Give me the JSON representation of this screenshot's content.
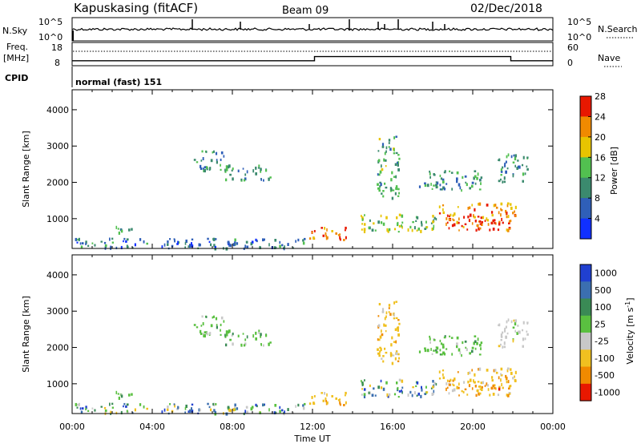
{
  "header": {
    "station": "Kapuskasing (fitACF)",
    "beam": "Beam 09",
    "date": "02/Dec/2018"
  },
  "top_panels": {
    "nsky_label": "N.Sky",
    "nsky_ticks": [
      "10^5",
      "10^0"
    ],
    "nsearch_label": "N.Search",
    "nsearch_ticks": [
      "10^5",
      "10^0"
    ],
    "freq_label_1": "Freq.",
    "freq_label_2": "[MHz]",
    "freq_ticks": [
      "18",
      "8"
    ],
    "nave_label": "Nave",
    "nave_ticks": [
      "60",
      "0"
    ],
    "cpid_label": "CPID",
    "cpid_text": "normal (fast) 151"
  },
  "axes": {
    "ylabel": "Slant Range [km]",
    "yticks": [
      "1000",
      "2000",
      "3000",
      "4000"
    ],
    "yticks_values": [
      1000,
      2000,
      3000,
      4000
    ],
    "ylim": [
      180,
      4550
    ],
    "xlabel": "Time UT",
    "xticks": [
      "00:00",
      "04:00",
      "08:00",
      "12:00",
      "16:00",
      "20:00",
      "00:00"
    ],
    "xlim_hours": [
      0,
      24
    ]
  },
  "colorbars": {
    "power": {
      "label": "Power [dB]",
      "ticks": [
        "4",
        "8",
        "12",
        "16",
        "20",
        "24",
        "28"
      ],
      "colors": [
        "#1030ff",
        "#2f5fb8",
        "#3b8a6e",
        "#52c050",
        "#e8c400",
        "#f08a00",
        "#e81800"
      ]
    },
    "velocity": {
      "label_main": "Velocity [m s",
      "label_sup": "-1",
      "label_end": "]",
      "ticks": [
        "1000",
        "500",
        "100",
        "25",
        "-25",
        "-100",
        "-500",
        "-1000"
      ],
      "colors": [
        "#2040d0",
        "#3b6fb0",
        "#3a8a55",
        "#5ac040",
        "#c8c8c8",
        "#f0c020",
        "#f08a00",
        "#e81800"
      ]
    }
  },
  "chart_data": {
    "type": "heatmap",
    "title": "Kapuskasing (fitACF)",
    "subtitle": "Beam 09",
    "xlabel": "Time UT",
    "ylabel": "Slant Range [km]",
    "x_ticks": [
      "00:00",
      "04:00",
      "08:00",
      "12:00",
      "16:00",
      "20:00",
      "00:00"
    ],
    "y_ticks": [
      1000,
      2000,
      3000,
      4000
    ],
    "ylim": [
      180,
      4550
    ],
    "frequency_MHz": [
      {
        "start_hour": 0,
        "end_hour": 12.1,
        "value": 10
      },
      {
        "start_hour": 12.1,
        "end_hour": 21.9,
        "value": 12
      },
      {
        "start_hour": 21.9,
        "end_hour": 24,
        "value": 10
      }
    ],
    "echo_regions": [
      {
        "t0": 0.0,
        "t1": 12.0,
        "r0": 200,
        "r1": 480,
        "power": 10,
        "velocity_class": "mixed"
      },
      {
        "t0": 1.7,
        "t1": 3.0,
        "r0": 640,
        "r1": 820,
        "power": 14,
        "velocity_class": "25"
      },
      {
        "t0": 6.0,
        "t1": 7.6,
        "r0": 2350,
        "r1": 2900,
        "power": 12,
        "velocity_class": "25"
      },
      {
        "t0": 7.6,
        "t1": 9.9,
        "r0": 2050,
        "r1": 2500,
        "power": 13,
        "velocity_class": "25"
      },
      {
        "t0": 11.8,
        "t1": 13.8,
        "r0": 420,
        "r1": 780,
        "power": 26,
        "velocity_class": "-100"
      },
      {
        "t0": 14.4,
        "t1": 18.2,
        "r0": 660,
        "r1": 1150,
        "power": 17,
        "velocity_class": "mixed"
      },
      {
        "t0": 15.2,
        "t1": 16.3,
        "r0": 1600,
        "r1": 3300,
        "power": 14,
        "velocity_class": "-100"
      },
      {
        "t0": 18.3,
        "t1": 22.2,
        "r0": 700,
        "r1": 1450,
        "power": 24,
        "velocity_class": "-100"
      },
      {
        "t0": 18.5,
        "t1": 21.3,
        "r0": 860,
        "r1": 1000,
        "power": 28,
        "velocity_class": "-500"
      },
      {
        "t0": 17.3,
        "t1": 20.5,
        "r0": 1800,
        "r1": 2350,
        "power": 12,
        "velocity_class": "25"
      },
      {
        "t0": 21.2,
        "t1": 22.7,
        "r0": 2000,
        "r1": 2800,
        "power": 11,
        "velocity_class": "-25"
      }
    ]
  }
}
